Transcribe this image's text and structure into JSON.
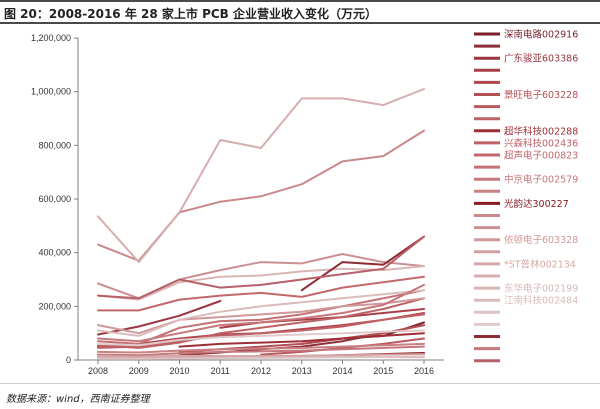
{
  "title": "图 20：2008-2016 年 28 家上市 PCB 企业营业收入变化（万元）",
  "source": "数据来源：wind，西南证券整理",
  "chart_data": {
    "type": "line",
    "title": "图 20：2008-2016 年 28 家上市 PCB 企业营业收入变化（万元）",
    "xlabel": "",
    "ylabel": "",
    "x": [
      "2008",
      "2009",
      "2010",
      "2011",
      "2012",
      "2013",
      "2014",
      "2015",
      "2016"
    ],
    "ylim": [
      0,
      1200000
    ],
    "yticks": [
      0,
      200000,
      400000,
      600000,
      800000,
      1000000,
      1200000
    ],
    "ytick_labels": [
      "0",
      "200,000",
      "400,000",
      "600,000",
      "800,000",
      "1,000,000",
      "1,200,000"
    ],
    "grid": false,
    "legend_position": "right",
    "series": [
      {
        "name": "深南电路002916",
        "color": "#7a1f2b",
        "values": [
          null,
          null,
          null,
          null,
          null,
          60000,
          80000,
          90000,
          140000
        ]
      },
      {
        "name": "",
        "color": "#8e2f3a",
        "values": [
          null,
          null,
          18000,
          28000,
          40000,
          50000,
          70000,
          100000,
          130000
        ]
      },
      {
        "name": "广东骏亚603386",
        "color": "#9b3540",
        "values": [
          95000,
          125000,
          165000,
          220000,
          null,
          null,
          null,
          null,
          null
        ]
      },
      {
        "name": "",
        "color": "#a83f47",
        "values": [
          null,
          null,
          null,
          120000,
          140000,
          150000,
          160000,
          175000,
          190000
        ]
      },
      {
        "name": "",
        "color": "#b0474e",
        "values": [
          50000,
          60000,
          80000,
          95000,
          100000,
          115000,
          130000,
          150000,
          175000
        ]
      },
      {
        "name": "景旺电子603228",
        "color": "#b45055",
        "values": [
          null,
          null,
          30000,
          40000,
          50000,
          60000,
          80000,
          100000,
          130000
        ]
      },
      {
        "name": "",
        "color": "#b85a5f",
        "values": [
          null,
          null,
          null,
          null,
          20000,
          30000,
          45000,
          60000,
          80000
        ]
      },
      {
        "name": "",
        "color": "#bd6166",
        "values": [
          55000,
          45000,
          65000,
          100000,
          120000,
          140000,
          160000,
          190000,
          230000
        ]
      },
      {
        "name": "超华科技002288",
        "color": "#9d2f35",
        "values": [
          null,
          null,
          50000,
          60000,
          65000,
          70000,
          80000,
          90000,
          100000
        ]
      },
      {
        "name": "兴森科技002436",
        "color": "#c06066",
        "values": [
          45000,
          50000,
          70000,
          90000,
          100000,
          110000,
          125000,
          150000,
          170000
        ]
      },
      {
        "name": "超声电子000823",
        "color": "#c2686c",
        "values": [
          185000,
          185000,
          225000,
          240000,
          250000,
          235000,
          270000,
          290000,
          310000
        ]
      },
      {
        "name": "",
        "color": "#c47074",
        "values": [
          70000,
          60000,
          120000,
          145000,
          150000,
          170000,
          200000,
          230000,
          260000
        ]
      },
      {
        "name": "中京电子002579",
        "color": "#c5787b",
        "values": [
          20000,
          18000,
          25000,
          30000,
          32000,
          35000,
          40000,
          45000,
          50000
        ]
      },
      {
        "name": "",
        "color": "#c88084",
        "values": [
          30000,
          28000,
          35000,
          40000,
          42000,
          45000,
          50000,
          55000,
          60000
        ]
      },
      {
        "name": "光韵达300227",
        "color": "#8a1a22",
        "values": [
          null,
          null,
          8000,
          10000,
          12000,
          15000,
          18000,
          22000,
          26000
        ]
      },
      {
        "name": "",
        "color": "#ca888a",
        "values": [
          430000,
          370000,
          550000,
          590000,
          610000,
          655000,
          740000,
          760000,
          855000
        ]
      },
      {
        "name": "",
        "color": "#cd9092",
        "values": [
          285000,
          230000,
          300000,
          335000,
          365000,
          360000,
          395000,
          365000,
          350000
        ]
      },
      {
        "name": "依顿电子603328",
        "color": "#d0989a",
        "values": [
          130000,
          100000,
          150000,
          160000,
          170000,
          180000,
          200000,
          210000,
          230000
        ]
      },
      {
        "name": "",
        "color": "#d3a0a2",
        "values": [
          10000,
          9000,
          12000,
          13000,
          15000,
          16000,
          18000,
          20000,
          22000
        ]
      },
      {
        "name": "*ST普林002134",
        "color": "#d4a7a8",
        "values": [
          15000,
          12000,
          16000,
          15000,
          14000,
          13000,
          12000,
          11000,
          10000
        ]
      },
      {
        "name": "",
        "color": "#d7aeaf",
        "values": [
          535000,
          365000,
          550000,
          820000,
          790000,
          975000,
          975000,
          950000,
          1010000
        ]
      },
      {
        "name": "东华电子002199",
        "color": "#d9b5b6",
        "values": [
          240000,
          225000,
          290000,
          310000,
          315000,
          330000,
          340000,
          335000,
          350000
        ]
      },
      {
        "name": "江南科技002484",
        "color": "#dbbcbd",
        "values": [
          110000,
          90000,
          150000,
          180000,
          200000,
          215000,
          230000,
          245000,
          260000
        ]
      },
      {
        "name": "",
        "color": "#ddc3c4",
        "values": [
          5000,
          5000,
          6000,
          7000,
          8000,
          9000,
          10000,
          11000,
          12000
        ]
      },
      {
        "name": "",
        "color": "#e0caca",
        "values": [
          60000,
          55000,
          75000,
          85000,
          90000,
          95000,
          100000,
          105000,
          110000
        ]
      },
      {
        "name": "",
        "color": "#8e2a34",
        "values": [
          null,
          null,
          null,
          null,
          null,
          260000,
          365000,
          355000,
          460000
        ]
      },
      {
        "name": "",
        "color": "#c8767a",
        "values": [
          80000,
          70000,
          100000,
          130000,
          140000,
          155000,
          175000,
          205000,
          280000
        ]
      },
      {
        "name": "",
        "color": "#b8606a",
        "values": [
          240000,
          230000,
          300000,
          270000,
          280000,
          300000,
          320000,
          340000,
          460000
        ]
      }
    ]
  }
}
